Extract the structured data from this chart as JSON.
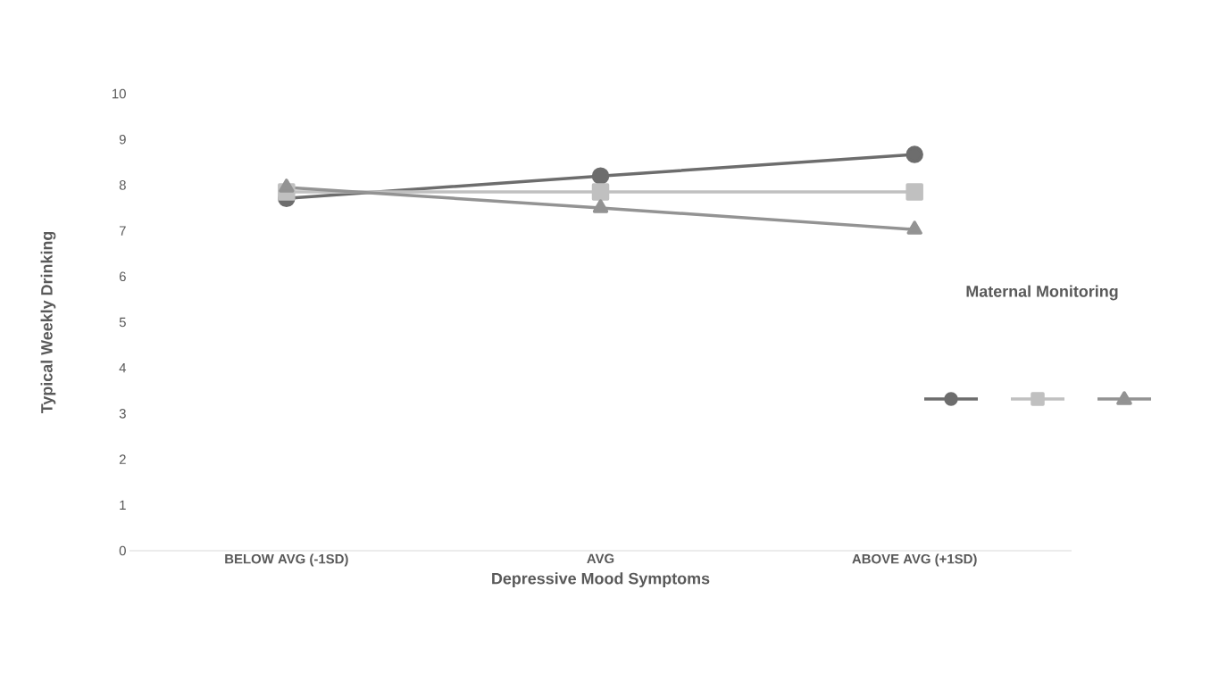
{
  "chart_data": {
    "type": "line",
    "xlabel": "Depressive Mood Symptoms",
    "ylabel": "Typical Weekly Drinking",
    "legend_title": "Maternal Monitoring",
    "categories": [
      "BELOW AVG (-1SD)",
      "AVG",
      "ABOVE AVG (+1SD)"
    ],
    "series": [
      {
        "color": "#6d6d6d",
        "marker": "circle",
        "values": [
          7.71,
          8.2,
          8.67
        ]
      },
      {
        "color": "#c0c0c0",
        "marker": "square",
        "values": [
          7.85,
          7.85,
          7.85
        ]
      },
      {
        "color": "#939393",
        "marker": "triangle",
        "values": [
          7.95,
          7.5,
          7.03
        ]
      }
    ],
    "ylim": [
      0,
      10
    ],
    "yticks": [
      0,
      1,
      2,
      3,
      4,
      5,
      6,
      7,
      8,
      9,
      10
    ],
    "line_style": "solid"
  }
}
